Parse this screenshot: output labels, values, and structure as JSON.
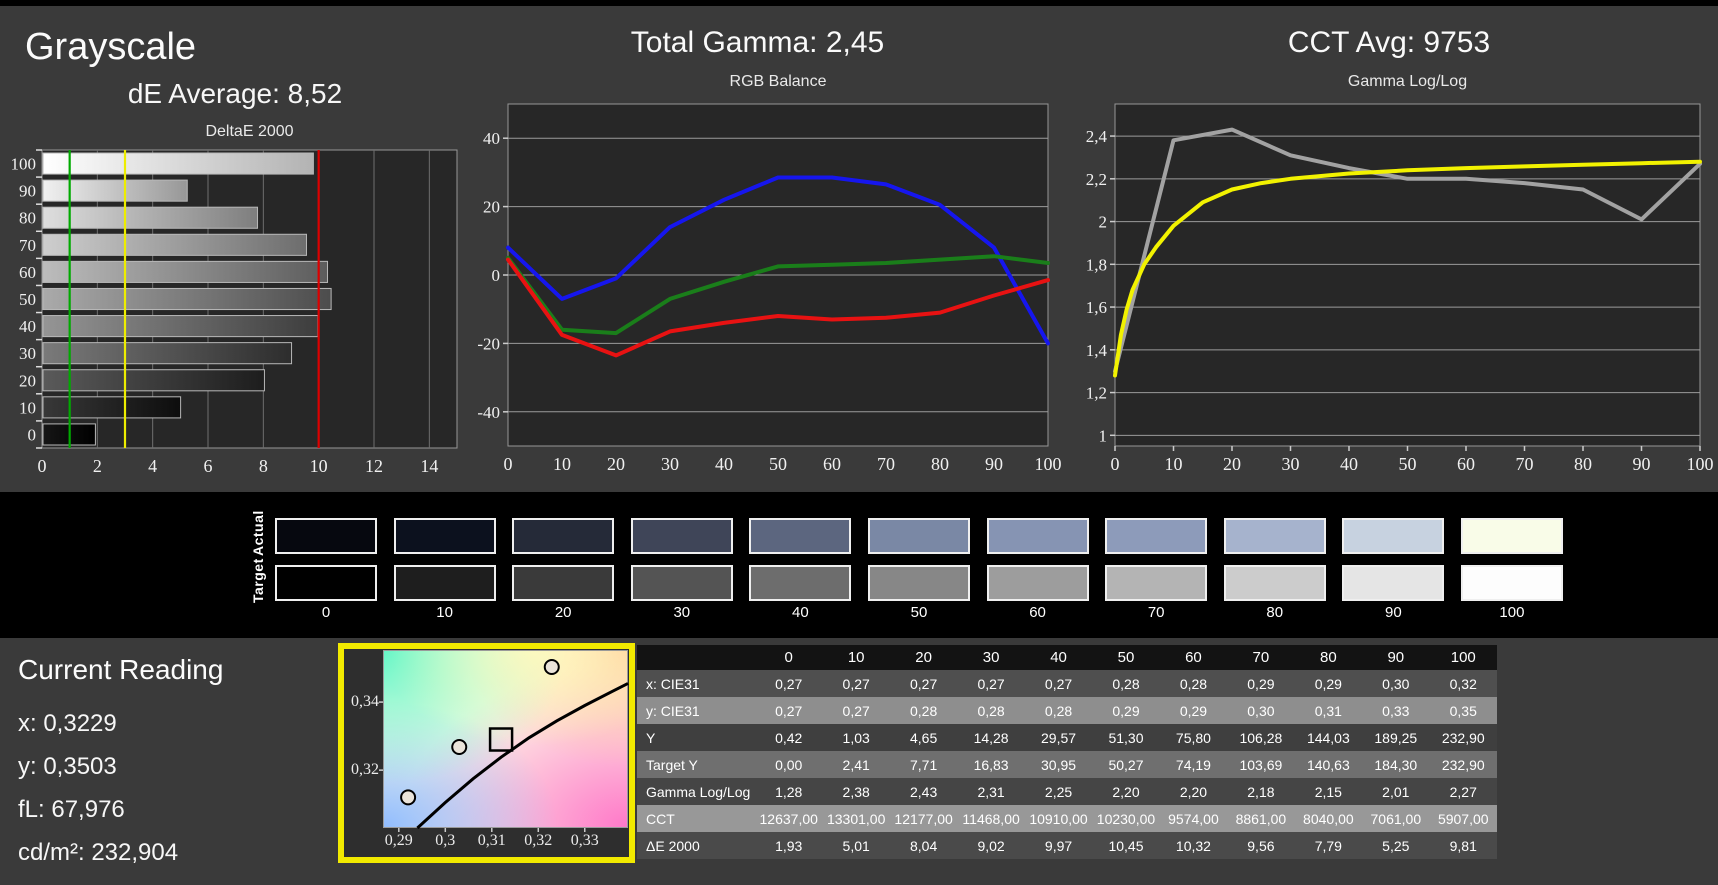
{
  "header": {
    "title": "Grayscale",
    "de_average": "dE Average: 8,52",
    "total_gamma": "Total Gamma: 2,45",
    "cct_avg": "CCT Avg: 9753"
  },
  "chart_data": [
    {
      "id": "deltae2000",
      "type": "bar",
      "orientation": "horizontal",
      "title": "DeltaE 2000",
      "categories": [
        "0",
        "10",
        "20",
        "30",
        "40",
        "50",
        "60",
        "70",
        "80",
        "90",
        "100"
      ],
      "values": [
        1.93,
        5.01,
        8.04,
        9.02,
        9.97,
        10.45,
        10.32,
        9.56,
        7.79,
        5.25,
        9.81
      ],
      "xlim": [
        0,
        15
      ],
      "xticks": [
        0,
        2,
        4,
        6,
        8,
        10,
        12,
        14
      ],
      "reference_lines": [
        {
          "name": "good-limit",
          "value": 1,
          "color": "#00aa00"
        },
        {
          "name": "warn-limit",
          "value": 3,
          "color": "#eded00"
        },
        {
          "name": "bad-limit",
          "value": 10,
          "color": "#dd0000"
        }
      ],
      "bar_gradients": [
        [
          "#161616",
          "#000000"
        ],
        [
          "#383838",
          "#0d0d0d"
        ],
        [
          "#5a5a5a",
          "#1d1d1d"
        ],
        [
          "#7a7a7a",
          "#2d2d2d"
        ],
        [
          "#959595",
          "#3d3d3d"
        ],
        [
          "#aaaaaa",
          "#4c4c4c"
        ],
        [
          "#bcbcbc",
          "#5c5c5c"
        ],
        [
          "#cecece",
          "#6d6d6d"
        ],
        [
          "#dedede",
          "#7e7e7e"
        ],
        [
          "#f1f1f1",
          "#979797"
        ],
        [
          "#ffffff",
          "#b3b3b3"
        ]
      ]
    },
    {
      "id": "rgb_balance",
      "type": "line",
      "title": "RGB Balance",
      "x": [
        0,
        10,
        20,
        30,
        40,
        50,
        60,
        70,
        80,
        90,
        100
      ],
      "xlim": [
        0,
        100
      ],
      "ylim": [
        -50,
        50
      ],
      "xticks": [
        0,
        10,
        20,
        30,
        40,
        50,
        60,
        70,
        80,
        90,
        100
      ],
      "yticks": [
        {
          "v": -40,
          "label": "-40"
        },
        {
          "v": -20,
          "label": "-20"
        },
        {
          "v": 0,
          "label": "0"
        },
        {
          "v": 20,
          "label": "20"
        },
        {
          "v": 40,
          "label": "40"
        }
      ],
      "series": [
        {
          "name": "blue",
          "color": "#1616ee",
          "values": [
            8,
            -7,
            -1,
            14,
            22,
            28.5,
            28.5,
            26.5,
            20.5,
            8,
            -20
          ]
        },
        {
          "name": "green",
          "color": "#1a7e1a",
          "values": [
            5,
            -16,
            -17,
            -7,
            -2,
            2.5,
            3,
            3.5,
            4.5,
            5.5,
            3.5
          ]
        },
        {
          "name": "red",
          "color": "#e81212",
          "values": [
            4.5,
            -17.5,
            -23.5,
            -16.5,
            -14,
            -12,
            -13,
            -12.5,
            -11,
            -6,
            -1.5
          ]
        }
      ]
    },
    {
      "id": "gamma_loglog",
      "type": "line",
      "title": "Gamma Log/Log",
      "xlim": [
        0,
        100
      ],
      "ylim": [
        0.95,
        2.55
      ],
      "xticks": [
        0,
        10,
        20,
        30,
        40,
        50,
        60,
        70,
        80,
        90,
        100
      ],
      "yticks": [
        {
          "v": 1,
          "label": "1"
        },
        {
          "v": 1.2,
          "label": "1,2"
        },
        {
          "v": 1.4,
          "label": "1,4"
        },
        {
          "v": 1.6,
          "label": "1,6"
        },
        {
          "v": 1.8,
          "label": "1,8"
        },
        {
          "v": 2,
          "label": "2"
        },
        {
          "v": 2.2,
          "label": "2,2"
        },
        {
          "v": 2.4,
          "label": "2,4"
        }
      ],
      "series": [
        {
          "name": "measured",
          "color": "#a2a2a2",
          "x": [
            0,
            10,
            20,
            30,
            40,
            50,
            60,
            70,
            80,
            90,
            100
          ],
          "values": [
            1.3,
            2.38,
            2.43,
            2.31,
            2.25,
            2.2,
            2.2,
            2.18,
            2.15,
            2.01,
            2.27
          ]
        },
        {
          "name": "target",
          "color": "#f2f200",
          "x": [
            0,
            1,
            2,
            3,
            5,
            7,
            10,
            15,
            20,
            25,
            30,
            40,
            50,
            60,
            70,
            80,
            90,
            100
          ],
          "values": [
            1.28,
            1.47,
            1.59,
            1.68,
            1.8,
            1.88,
            1.98,
            2.09,
            2.15,
            2.18,
            2.2,
            2.225,
            2.24,
            2.25,
            2.258,
            2.266,
            2.273,
            2.28
          ]
        }
      ]
    },
    {
      "id": "cie_detail",
      "type": "scatter",
      "xlim": [
        0.2866,
        0.3393
      ],
      "ylim": [
        0.303,
        0.3553
      ],
      "xticks": [
        {
          "v": 0.29,
          "label": "0,29"
        },
        {
          "v": 0.3,
          "label": "0,3"
        },
        {
          "v": 0.31,
          "label": "0,31"
        },
        {
          "v": 0.32,
          "label": "0,32"
        },
        {
          "v": 0.33,
          "label": "0,33"
        }
      ],
      "yticks": [
        {
          "v": 0.32,
          "label": "0,32"
        },
        {
          "v": 0.34,
          "label": "0,34"
        }
      ],
      "locus": [
        [
          0.294,
          0.303
        ],
        [
          0.3,
          0.3105
        ],
        [
          0.306,
          0.3175
        ],
        [
          0.312,
          0.3238
        ],
        [
          0.318,
          0.3295
        ],
        [
          0.324,
          0.3345
        ],
        [
          0.33,
          0.339
        ],
        [
          0.336,
          0.3432
        ],
        [
          0.3393,
          0.3455
        ]
      ],
      "points": [
        {
          "x": 0.292,
          "y": 0.312,
          "shape": "circle"
        },
        {
          "x": 0.303,
          "y": 0.3268,
          "shape": "circle"
        },
        {
          "x": 0.3229,
          "y": 0.3503,
          "shape": "circle"
        },
        {
          "x": 0.312,
          "y": 0.329,
          "shape": "square"
        }
      ]
    }
  ],
  "swatches": {
    "actual_label": "Actual",
    "target_label": "Target",
    "levels": [
      "0",
      "10",
      "20",
      "30",
      "40",
      "50",
      "60",
      "70",
      "80",
      "90",
      "100"
    ],
    "actual_colors": [
      "#06080f",
      "#0c111e",
      "#252a38",
      "#3f4558",
      "#5c667f",
      "#7a88a5",
      "#8694b3",
      "#8d9bba",
      "#a6b3cd",
      "#c7d2e0",
      "#f9fce8"
    ],
    "target_colors": [
      "#000000",
      "#1e1e1e",
      "#3a3a3a",
      "#545454",
      "#6d6d6d",
      "#878787",
      "#9d9d9d",
      "#b4b4b4",
      "#cccccc",
      "#e5e5e5",
      "#fdfdfd"
    ]
  },
  "current_reading": {
    "title": "Current Reading",
    "lines": [
      "x: 0,3229",
      "y: 0,3503",
      "fL: 67,976",
      "cd/m²: 232,904"
    ]
  },
  "table": {
    "header": [
      "",
      "0",
      "10",
      "20",
      "30",
      "40",
      "50",
      "60",
      "70",
      "80",
      "90",
      "100"
    ],
    "rows": [
      {
        "label": "x: CIE31",
        "bg": "#4f4f4f",
        "values": [
          "0,27",
          "0,27",
          "0,27",
          "0,27",
          "0,27",
          "0,28",
          "0,28",
          "0,29",
          "0,29",
          "0,30",
          "0,32"
        ]
      },
      {
        "label": "y: CIE31",
        "bg": "#8e8e8e",
        "values": [
          "0,27",
          "0,27",
          "0,28",
          "0,28",
          "0,28",
          "0,29",
          "0,29",
          "0,30",
          "0,31",
          "0,33",
          "0,35"
        ]
      },
      {
        "label": "Y",
        "bg": "#3f3f3f",
        "values": [
          "0,42",
          "1,03",
          "4,65",
          "14,28",
          "29,57",
          "51,30",
          "75,80",
          "106,28",
          "144,03",
          "189,25",
          "232,90"
        ]
      },
      {
        "label": "Target Y",
        "bg": "#6f6f6f",
        "values": [
          "0,00",
          "2,41",
          "7,71",
          "16,83",
          "30,95",
          "50,27",
          "74,19",
          "103,69",
          "140,63",
          "184,30",
          "232,90"
        ]
      },
      {
        "label": "Gamma Log/Log",
        "bg": "#454545",
        "values": [
          "1,28",
          "2,38",
          "2,43",
          "2,31",
          "2,25",
          "2,20",
          "2,20",
          "2,18",
          "2,15",
          "2,01",
          "2,27"
        ]
      },
      {
        "label": "CCT",
        "bg": "#989898",
        "values": [
          "12637,00",
          "13301,00",
          "12177,00",
          "11468,00",
          "10910,00",
          "10230,00",
          "9574,00",
          "8861,00",
          "8040,00",
          "7061,00",
          "5907,00"
        ]
      },
      {
        "label": "ΔE 2000",
        "bg": "#4a4a4a",
        "values": [
          "1,93",
          "5,01",
          "8,04",
          "9,02",
          "9,97",
          "10,45",
          "10,32",
          "9,56",
          "7,79",
          "5,25",
          "9,81"
        ]
      }
    ]
  },
  "colors": {
    "background": "#3a3a3a",
    "band_background": "#000000",
    "plot_background": "#272727",
    "grid": "#9b9b9b",
    "selection_border": "#f2ea00"
  }
}
